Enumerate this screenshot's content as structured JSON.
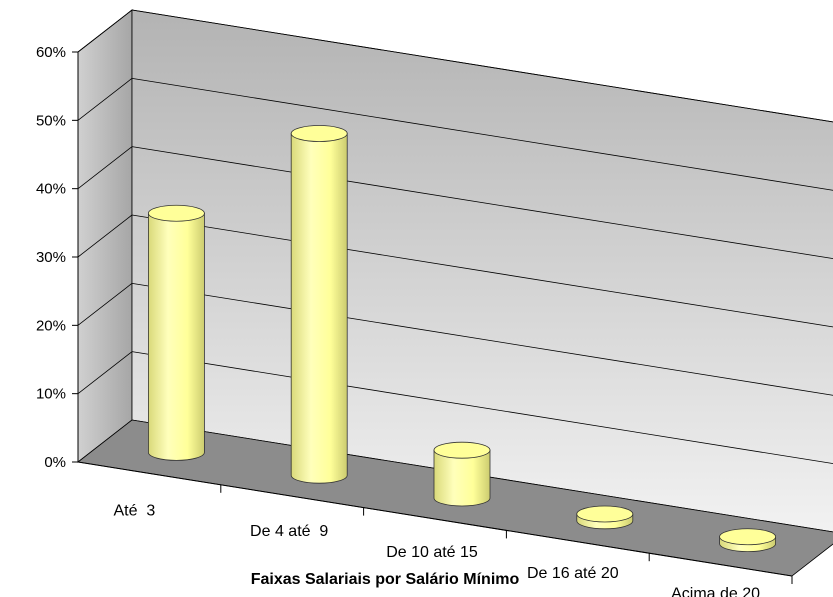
{
  "chart_data": {
    "type": "bar",
    "style": "3d-cylinder",
    "title": "",
    "xlabel": "Faixas Salariais por Salário Mínimo",
    "ylabel": "",
    "categories": [
      "Até  3",
      "De 4 até  9",
      "De 10 até 15",
      "De 16 até 20",
      "Acima de 20"
    ],
    "series": [
      {
        "values": [
          35,
          50,
          7,
          1,
          1
        ]
      }
    ],
    "ylim": [
      0,
      60
    ],
    "yticks": [
      "0%",
      "10%",
      "20%",
      "30%",
      "40%",
      "50%",
      "60%"
    ],
    "grid": true,
    "legend": "none",
    "colors": {
      "bar": "#ffff99",
      "bar_edge": "#333333",
      "floor": "#8c8c8c",
      "wall_light": "#f2f2f2",
      "wall_dark": "#b3b3b3"
    }
  }
}
